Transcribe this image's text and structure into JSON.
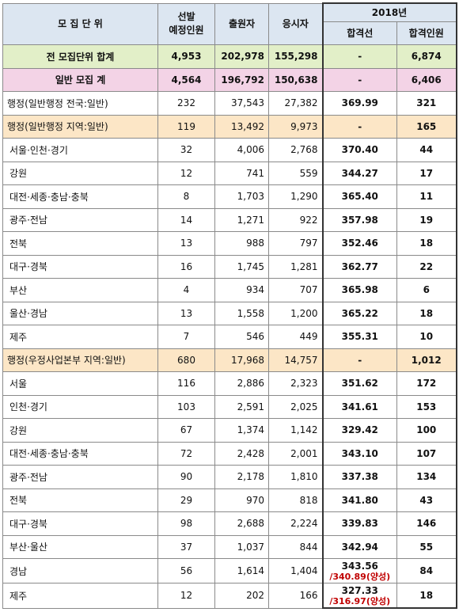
{
  "header": {
    "unit": "모 집 단 위",
    "planned": "선발\n예정인원",
    "applicants": "출원자",
    "examinees": "응시자",
    "year": "2018년",
    "cutline": "합격선",
    "passers": "합격인원"
  },
  "rows": [
    {
      "unit": "전 모집단위 합계",
      "planned": "4,953",
      "applicants": "202,978",
      "examinees": "155,298",
      "cutline": "-",
      "passers": "6,874"
    },
    {
      "unit": "일반 모집 계",
      "planned": "4,564",
      "applicants": "196,792",
      "examinees": "150,638",
      "cutline": "-",
      "passers": "6,406"
    },
    {
      "unit": "행정(일반행정 전국:일반)",
      "planned": "232",
      "applicants": "37,543",
      "examinees": "27,382",
      "cutline": "369.99",
      "passers": "321"
    },
    {
      "unit": "행정(일반행정 지역:일반)",
      "planned": "119",
      "applicants": "13,492",
      "examinees": "9,973",
      "cutline": "-",
      "passers": "165"
    },
    {
      "unit": "서울·인천·경기",
      "planned": "32",
      "applicants": "4,006",
      "examinees": "2,768",
      "cutline": "370.40",
      "passers": "44"
    },
    {
      "unit": "강원",
      "planned": "12",
      "applicants": "741",
      "examinees": "559",
      "cutline": "344.27",
      "passers": "17"
    },
    {
      "unit": "대전·세종·충남·충북",
      "planned": "8",
      "applicants": "1,703",
      "examinees": "1,290",
      "cutline": "365.40",
      "passers": "11"
    },
    {
      "unit": "광주·전남",
      "planned": "14",
      "applicants": "1,271",
      "examinees": "922",
      "cutline": "357.98",
      "passers": "19"
    },
    {
      "unit": "전북",
      "planned": "13",
      "applicants": "988",
      "examinees": "797",
      "cutline": "352.46",
      "passers": "18"
    },
    {
      "unit": "대구·경북",
      "planned": "16",
      "applicants": "1,745",
      "examinees": "1,281",
      "cutline": "362.77",
      "passers": "22"
    },
    {
      "unit": "부산",
      "planned": "4",
      "applicants": "934",
      "examinees": "707",
      "cutline": "365.98",
      "passers": "6"
    },
    {
      "unit": "울산·경남",
      "planned": "13",
      "applicants": "1,558",
      "examinees": "1,200",
      "cutline": "365.22",
      "passers": "18"
    },
    {
      "unit": "제주",
      "planned": "7",
      "applicants": "546",
      "examinees": "449",
      "cutline": "355.31",
      "passers": "10"
    },
    {
      "unit": "행정(우정사업본부 지역:일반)",
      "planned": "680",
      "applicants": "17,968",
      "examinees": "14,757",
      "cutline": "-",
      "passers": "1,012"
    },
    {
      "unit": "서울",
      "planned": "116",
      "applicants": "2,886",
      "examinees": "2,323",
      "cutline": "351.62",
      "passers": "172"
    },
    {
      "unit": "인천·경기",
      "planned": "103",
      "applicants": "2,591",
      "examinees": "2,025",
      "cutline": "341.61",
      "passers": "153"
    },
    {
      "unit": "강원",
      "planned": "67",
      "applicants": "1,374",
      "examinees": "1,142",
      "cutline": "329.42",
      "passers": "100"
    },
    {
      "unit": "대전·세종·충남·충북",
      "planned": "72",
      "applicants": "2,428",
      "examinees": "2,001",
      "cutline": "343.10",
      "passers": "107"
    },
    {
      "unit": "광주·전남",
      "planned": "90",
      "applicants": "2,178",
      "examinees": "1,810",
      "cutline": "337.38",
      "passers": "134"
    },
    {
      "unit": "전북",
      "planned": "29",
      "applicants": "970",
      "examinees": "818",
      "cutline": "341.80",
      "passers": "43"
    },
    {
      "unit": "대구·경북",
      "planned": "98",
      "applicants": "2,688",
      "examinees": "2,224",
      "cutline": "339.83",
      "passers": "146"
    },
    {
      "unit": "부산·울산",
      "planned": "37",
      "applicants": "1,037",
      "examinees": "844",
      "cutline": "342.94",
      "passers": "55"
    },
    {
      "unit": "경남",
      "planned": "56",
      "applicants": "1,614",
      "examinees": "1,404",
      "cutline": "343.56",
      "cutline_note": "/340.89(양성)",
      "passers": "84"
    },
    {
      "unit": "제주",
      "planned": "12",
      "applicants": "202",
      "examinees": "166",
      "cutline": "327.33",
      "cutline_note": "/316.97(양성)",
      "passers": "18"
    }
  ]
}
